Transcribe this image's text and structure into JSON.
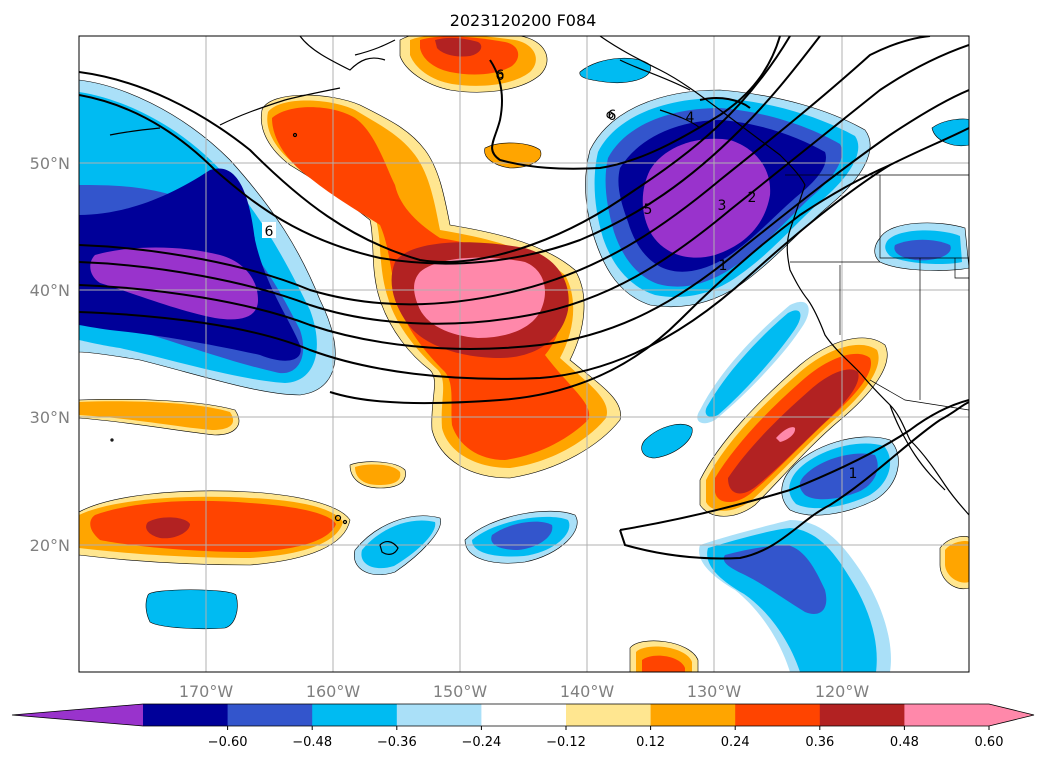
{
  "title": "2023120200 F084",
  "map": {
    "lat_labels": [
      "50°N",
      "40°N",
      "30°N",
      "20°N"
    ],
    "lon_labels": [
      "170°W",
      "160°W",
      "150°W",
      "140°W",
      "130°W",
      "120°W"
    ],
    "contour_labels": [
      "6",
      "5",
      "4",
      "3",
      "2",
      "1",
      "6",
      "6",
      "1"
    ],
    "gridlines": true
  },
  "colorbar": {
    "ticks": [
      "−0.60",
      "−0.48",
      "−0.36",
      "−0.24",
      "−0.12",
      "0.12",
      "0.24",
      "0.36",
      "0.48",
      "0.60"
    ],
    "colors": [
      "#9933cc",
      "#000099",
      "#3355cc",
      "#00bbf2",
      "#aae0f8",
      "#ffffff",
      "#ffe690",
      "#ffa500",
      "#ff4400",
      "#b22222",
      "#ff88aa",
      "#ff88aa"
    ],
    "extend": "both"
  }
}
